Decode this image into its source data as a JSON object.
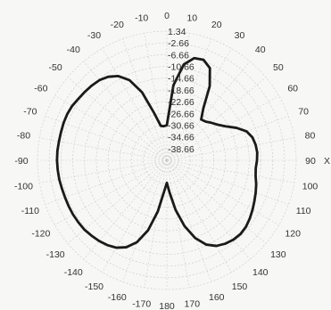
{
  "chart_data": {
    "type": "polar_line",
    "title": "",
    "angle_axis_label": "X",
    "angle_ticks": [
      -170,
      -160,
      -150,
      -140,
      -130,
      -120,
      -110,
      -100,
      -90,
      -80,
      -70,
      -60,
      -50,
      -40,
      -30,
      -20,
      -10,
      0,
      10,
      20,
      30,
      40,
      50,
      60,
      70,
      80,
      90,
      100,
      110,
      120,
      130,
      140,
      150,
      160,
      170,
      180
    ],
    "radial_ticks": [
      "1.34",
      "-2.66",
      "-6.66",
      "-10.66",
      "-14.66",
      "-18.66",
      "-22.66",
      "-26.66",
      "-30.66",
      "-34.66",
      "-38.66"
    ],
    "radial_range": [
      -42.66,
      1.34
    ],
    "grid": true,
    "series": [
      {
        "angles": [
          0,
          5,
          10,
          15,
          20,
          25,
          30,
          35,
          40,
          45,
          50,
          55,
          60,
          65,
          70,
          75,
          80,
          85,
          90,
          95,
          100,
          105,
          110,
          115,
          120,
          125,
          130,
          135,
          140,
          145,
          150,
          155,
          160,
          165,
          170,
          175,
          180,
          185,
          190,
          195,
          200,
          205,
          210,
          215,
          220,
          225,
          230,
          235,
          240,
          245,
          250,
          255,
          260,
          265,
          270,
          275,
          280,
          285,
          290,
          295,
          300,
          305,
          310,
          315,
          320,
          325,
          330,
          335,
          340,
          345,
          350,
          355,
          360
        ],
        "values": [
          -30.7,
          -17.0,
          -9.5,
          -6.6,
          -6.2,
          -8.0,
          -13.5,
          -21.0,
          -24.5,
          -24.0,
          -22.8,
          -21.5,
          -19.5,
          -16.5,
          -13.8,
          -12.5,
          -12.0,
          -11.8,
          -12.0,
          -12.3,
          -12.0,
          -11.2,
          -10.5,
          -9.8,
          -9.0,
          -8.2,
          -7.5,
          -7.2,
          -7.4,
          -8.0,
          -9.0,
          -11.0,
          -14.5,
          -19.5,
          -25.5,
          -31.5,
          -35.0,
          -32.0,
          -25.0,
          -18.0,
          -13.0,
          -10.0,
          -8.3,
          -7.4,
          -6.8,
          -6.4,
          -6.0,
          -5.9,
          -5.8,
          -5.8,
          -5.8,
          -5.7,
          -5.5,
          -5.4,
          -5.3,
          -5.3,
          -5.4,
          -5.4,
          -5.3,
          -5.3,
          -5.5,
          -6.0,
          -6.3,
          -6.6,
          -7.0,
          -7.9,
          -9.5,
          -12.5,
          -18.0,
          -26.0,
          -30.7,
          -31.0,
          -30.7
        ]
      }
    ]
  }
}
